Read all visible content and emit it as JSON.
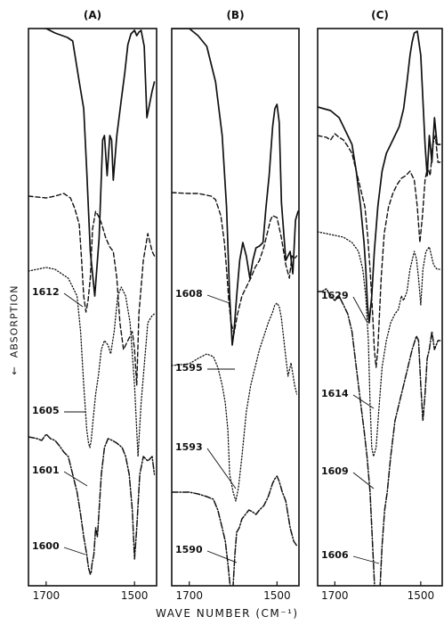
{
  "chart_data": [
    {
      "type": "line",
      "panel": "(A)",
      "xlabel": "WAVE NUMBER (CM⁻¹)",
      "ylabel": "ABSORPTION",
      "xlim": [
        1740,
        1450
      ],
      "xticks": [
        {
          "value": 1700,
          "label": "1700"
        },
        {
          "value": 1500,
          "label": "1500"
        }
      ],
      "peak_labels": [
        "1612",
        "1605",
        "1601",
        "1600"
      ],
      "series": [
        {
          "style": "solid",
          "x": [
            1740,
            1700,
            1680,
            1652,
            1640,
            1625,
            1615,
            1608,
            1600,
            1590,
            1580,
            1572,
            1568,
            1562,
            1556,
            1552,
            1548,
            1540,
            1530,
            1522,
            1515,
            1508,
            1500,
            1495,
            1490,
            1485,
            1478,
            1472,
            1460,
            1455
          ],
          "y": [
            -2,
            0,
            5,
            10,
            14,
            60,
            90,
            160,
            250,
            300,
            235,
            125,
            120,
            165,
            120,
            125,
            170,
            120,
            80,
            50,
            18,
            6,
            2,
            8,
            4,
            2,
            20,
            100,
            70,
            60
          ]
        },
        {
          "style": "dashed",
          "x": [
            1740,
            1700,
            1680,
            1660,
            1645,
            1635,
            1625,
            1620,
            1615,
            1610,
            1605,
            1600,
            1595,
            1588,
            1582,
            1575,
            1565,
            1556,
            1548,
            1540,
            1533,
            1525,
            1515,
            1505,
            1500,
            1495,
            1490,
            1480,
            1470,
            1460,
            1455
          ],
          "y": [
            188,
            190,
            188,
            185,
            190,
            202,
            220,
            258,
            300,
            318,
            305,
            280,
            225,
            205,
            210,
            218,
            235,
            245,
            250,
            280,
            330,
            360,
            350,
            340,
            360,
            400,
            320,
            260,
            230,
            250,
            255
          ]
        },
        {
          "style": "dotted",
          "x": [
            1740,
            1720,
            1700,
            1680,
            1665,
            1650,
            1640,
            1630,
            1622,
            1615,
            1608,
            1604,
            1601,
            1598,
            1594,
            1588,
            1582,
            1575,
            1568,
            1560,
            1554,
            1546,
            1538,
            1530,
            1520,
            1510,
            1500,
            1492,
            1485,
            1470,
            1460,
            1455
          ],
          "y": [
            272,
            270,
            268,
            270,
            275,
            280,
            290,
            300,
            340,
            400,
            450,
            465,
            470,
            462,
            440,
            410,
            390,
            360,
            350,
            355,
            365,
            340,
            300,
            290,
            300,
            330,
            400,
            480,
            420,
            330,
            322,
            320
          ]
        },
        {
          "style": "dashdot",
          "x": [
            1740,
            1720,
            1710,
            1700,
            1690,
            1680,
            1670,
            1660,
            1650,
            1640,
            1630,
            1622,
            1615,
            1608,
            1604,
            1600,
            1598,
            1596,
            1592,
            1588,
            1584,
            1580,
            1575,
            1568,
            1560,
            1550,
            1540,
            1528,
            1520,
            1512,
            1505,
            1500,
            1495,
            1488,
            1480,
            1470,
            1460,
            1455
          ],
          "y": [
            458,
            460,
            462,
            455,
            460,
            462,
            468,
            475,
            480,
            500,
            520,
            545,
            570,
            590,
            605,
            612,
            610,
            600,
            590,
            560,
            570,
            540,
            500,
            470,
            460,
            462,
            465,
            470,
            480,
            500,
            540,
            595,
            560,
            500,
            480,
            485,
            480,
            500
          ]
        }
      ]
    },
    {
      "type": "line",
      "panel": "(B)",
      "xlabel": "WAVE NUMBER (CM⁻¹)",
      "ylabel": "ABSORPTION",
      "xlim": [
        1740,
        1450
      ],
      "xticks": [
        {
          "value": 1700,
          "label": "1700"
        },
        {
          "value": 1500,
          "label": "1500"
        }
      ],
      "peak_labels": [
        "1608",
        "1595",
        "1593",
        "1590"
      ],
      "series": [
        {
          "style": "solid",
          "x": [
            1740,
            1700,
            1680,
            1660,
            1640,
            1625,
            1615,
            1608,
            1602,
            1598,
            1592,
            1585,
            1578,
            1570,
            1562,
            1555,
            1548,
            1540,
            1532,
            1525,
            1518,
            1510,
            1505,
            1500,
            1495,
            1490,
            1480,
            1470,
            1464,
            1458,
            1452
          ],
          "y": [
            0,
            0,
            8,
            20,
            60,
            120,
            200,
            300,
            355,
            340,
            300,
            260,
            240,
            255,
            280,
            260,
            246,
            244,
            240,
            200,
            165,
            110,
            90,
            85,
            105,
            195,
            260,
            250,
            275,
            215,
            205
          ]
        },
        {
          "style": "dashed",
          "x": [
            1740,
            1700,
            1680,
            1660,
            1650,
            1640,
            1628,
            1620,
            1615,
            1610,
            1605,
            1598,
            1590,
            1580,
            1570,
            1560,
            1550,
            1540,
            1530,
            1520,
            1515,
            1510,
            1500,
            1490,
            1480,
            1472,
            1466,
            1460,
            1455
          ],
          "y": [
            184,
            185,
            185,
            187,
            188,
            192,
            210,
            240,
            270,
            305,
            330,
            342,
            320,
            300,
            290,
            280,
            268,
            260,
            245,
            225,
            215,
            210,
            212,
            235,
            265,
            280,
            255,
            258,
            255
          ]
        },
        {
          "style": "dotted",
          "x": [
            1740,
            1700,
            1680,
            1660,
            1645,
            1635,
            1625,
            1618,
            1612,
            1608,
            1600,
            1594,
            1588,
            1580,
            1570,
            1560,
            1550,
            1540,
            1530,
            1520,
            1510,
            1505,
            1500,
            1495,
            1490,
            1482,
            1475,
            1468,
            1460,
            1455
          ],
          "y": [
            378,
            376,
            370,
            365,
            368,
            380,
            400,
            420,
            450,
            500,
            520,
            530,
            515,
            480,
            430,
            400,
            380,
            360,
            345,
            330,
            318,
            310,
            308,
            312,
            325,
            360,
            390,
            375,
            400,
            410
          ]
        },
        {
          "style": "dashdot",
          "x": [
            1740,
            1700,
            1680,
            1660,
            1645,
            1635,
            1625,
            1618,
            1612,
            1608,
            1604,
            1600,
            1596,
            1592,
            1586,
            1580,
            1572,
            1564,
            1556,
            1548,
            1540,
            1530,
            1520,
            1510,
            1505,
            1500,
            1495,
            1488,
            1480,
            1470,
            1462,
            1455
          ],
          "y": [
            520,
            520,
            522,
            525,
            528,
            540,
            560,
            575,
            600,
            620,
            640,
            625,
            590,
            565,
            560,
            550,
            545,
            540,
            542,
            545,
            540,
            535,
            525,
            510,
            505,
            502,
            508,
            520,
            530,
            560,
            575,
            580
          ]
        }
      ]
    },
    {
      "type": "line",
      "panel": "(C)",
      "xlabel": "WAVE NUMBER (CM⁻¹)",
      "ylabel": "ABSORPTION",
      "xlim": [
        1740,
        1450
      ],
      "xticks": [
        {
          "value": 1700,
          "label": "1700"
        },
        {
          "value": 1500,
          "label": "1500"
        }
      ],
      "peak_labels": [
        "1629",
        "1614",
        "1609",
        "1606"
      ],
      "series": [
        {
          "style": "solid",
          "x": [
            1740,
            1725,
            1710,
            1700,
            1690,
            1680,
            1670,
            1660,
            1650,
            1640,
            1632,
            1628,
            1624,
            1620,
            1614,
            1608,
            1600,
            1590,
            1580,
            1570,
            1560,
            1550,
            1540,
            1532,
            1525,
            1520,
            1515,
            1508,
            1500,
            1495,
            1490,
            1485,
            1480,
            1474,
            1468,
            1462,
            1455
          ],
          "y": [
            88,
            90,
            92,
            96,
            100,
            110,
            120,
            130,
            160,
            200,
            240,
            270,
            310,
            330,
            300,
            250,
            200,
            160,
            140,
            130,
            120,
            110,
            90,
            60,
            30,
            15,
            5,
            3,
            30,
            80,
            130,
            165,
            120,
            150,
            100,
            130,
            130
          ]
        },
        {
          "style": "dashed",
          "x": [
            1740,
            1720,
            1710,
            1700,
            1690,
            1680,
            1670,
            1660,
            1650,
            1640,
            1630,
            1624,
            1618,
            1612,
            1608,
            1604,
            1600,
            1592,
            1585,
            1575,
            1565,
            1555,
            1545,
            1535,
            1525,
            1515,
            1508,
            1502,
            1496,
            1490,
            1484,
            1478,
            1472,
            1466,
            1460,
            1455
          ],
          "y": [
            120,
            122,
            125,
            118,
            122,
            125,
            132,
            140,
            160,
            180,
            200,
            230,
            270,
            320,
            360,
            380,
            360,
            280,
            230,
            200,
            185,
            175,
            168,
            165,
            160,
            170,
            200,
            240,
            210,
            170,
            155,
            165,
            130,
            120,
            150,
            150
          ]
        },
        {
          "style": "dotted",
          "x": [
            1740,
            1720,
            1700,
            1680,
            1660,
            1645,
            1635,
            1628,
            1622,
            1618,
            1614,
            1610,
            1604,
            1598,
            1590,
            1580,
            1570,
            1560,
            1552,
            1545,
            1540,
            1532,
            1525,
            1520,
            1515,
            1510,
            1505,
            1500,
            1495,
            1488,
            1480,
            1470,
            1462,
            1455
          ],
          "y": [
            228,
            230,
            232,
            234,
            240,
            250,
            270,
            300,
            350,
            420,
            470,
            480,
            470,
            430,
            380,
            350,
            330,
            320,
            315,
            300,
            305,
            295,
            270,
            260,
            250,
            258,
            280,
            310,
            270,
            250,
            245,
            265,
            270,
            270
          ]
        },
        {
          "style": "dashdot",
          "x": [
            1740,
            1730,
            1720,
            1710,
            1700,
            1690,
            1680,
            1670,
            1660,
            1650,
            1640,
            1632,
            1625,
            1618,
            1612,
            1608,
            1604,
            1600,
            1596,
            1590,
            1584,
            1578,
            1570,
            1560,
            1550,
            1540,
            1530,
            1520,
            1510,
            1505,
            1500,
            1495,
            1490,
            1485,
            1480,
            1474,
            1468,
            1460,
            1455
          ],
          "y": [
            295,
            295,
            292,
            300,
            305,
            300,
            310,
            320,
            340,
            380,
            420,
            450,
            480,
            520,
            580,
            620,
            660,
            670,
            640,
            580,
            540,
            520,
            480,
            440,
            420,
            400,
            380,
            360,
            345,
            350,
            400,
            440,
            410,
            370,
            360,
            340,
            360,
            350,
            350
          ]
        }
      ]
    }
  ]
}
